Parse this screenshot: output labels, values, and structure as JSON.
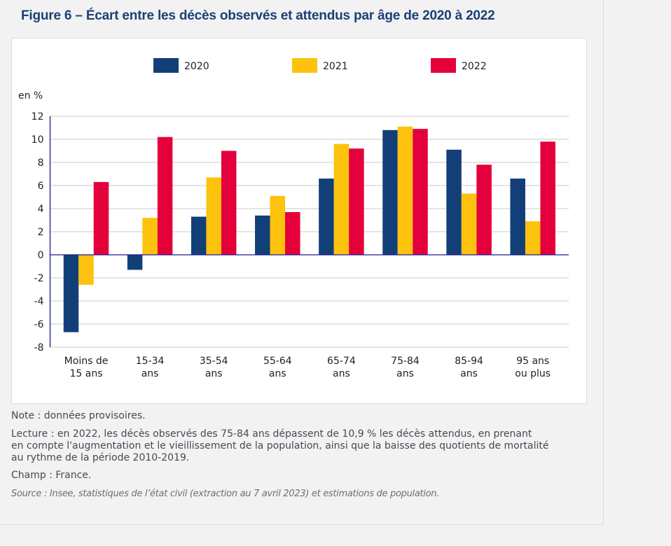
{
  "title": "Figure 6 – Écart entre les décès observés et attendus par âge de 2020 à 2022",
  "colors": {
    "series_2020": "#123f78",
    "series_2021": "#fdc20e",
    "series_2022": "#e4003b",
    "axis": "#1a1a8c",
    "grid": "#c8c8c8",
    "title": "#1b3f75"
  },
  "notes": {
    "note": "Note : données provisoires.",
    "lecture_lines": [
      "Lecture : en 2022, les décès observés des 75-84 ans dépassent de 10,9 % les décès attendus, en prenant",
      "en compte l'augmentation et le vieillissement de la population, ainsi que la baisse des quotients de mortalité",
      "au rythme de la période 2010-2019."
    ],
    "champ": "Champ : France.",
    "source": "Source : Insee, statistiques de l’état civil (extraction au 7 avril 2023) et estimations de population."
  },
  "chart_data": {
    "type": "bar",
    "title": "Figure 6 – Écart entre les décès observés et attendus par âge de 2020 à 2022",
    "xlabel": "",
    "ylabel": "en %",
    "ylim": [
      -8,
      12
    ],
    "yticks": [
      12,
      10,
      8,
      6,
      4,
      2,
      0,
      -2,
      -4,
      -6,
      -8
    ],
    "grid": true,
    "legend_position": "top-center",
    "categories": [
      [
        "Moins de",
        "15 ans"
      ],
      [
        "15-34",
        "ans"
      ],
      [
        "35-54",
        "ans"
      ],
      [
        "55-64",
        "ans"
      ],
      [
        "65-74",
        "ans"
      ],
      [
        "75-84",
        "ans"
      ],
      [
        "85-94",
        "ans"
      ],
      [
        "95 ans",
        "ou plus"
      ]
    ],
    "series": [
      {
        "name": "2020",
        "color": "#123f78",
        "values": [
          -6.7,
          -1.3,
          3.3,
          3.4,
          6.6,
          10.8,
          9.1,
          6.6
        ]
      },
      {
        "name": "2021",
        "color": "#fdc20e",
        "values": [
          -2.6,
          3.2,
          6.7,
          5.1,
          9.6,
          11.1,
          5.3,
          2.9
        ]
      },
      {
        "name": "2022",
        "color": "#e4003b",
        "values": [
          6.3,
          10.2,
          9.0,
          3.7,
          9.2,
          10.9,
          7.8,
          9.8
        ]
      }
    ]
  }
}
